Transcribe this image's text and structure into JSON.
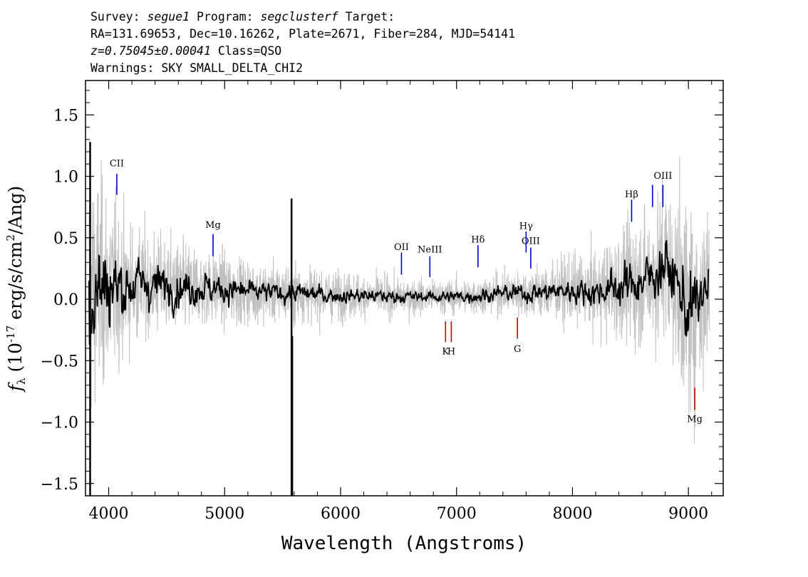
{
  "header": {
    "survey_label": "Survey: ",
    "survey": "segue1",
    "program_label": " Program: ",
    "program": "segclusterf",
    "target_label": " Target:",
    "line2": "RA=131.69653, Dec=10.16262, Plate=2671, Fiber=284, MJD=54141",
    "redshift": "z=0.75045±0.00041",
    "class_text": " Class=QSO",
    "warnings": "Warnings: SKY SMALL_DELTA_CHI2"
  },
  "chart_data": {
    "type": "line",
    "xlabel": "Wavelength (Angstroms)",
    "ylabel_main": "f",
    "ylabel_sub": "λ",
    "ylabel_rest": " (10",
    "ylabel_exp": "-17",
    "ylabel_units": " erg/s/cm",
    "ylabel_exp2": "2",
    "ylabel_end": "/Ang)",
    "xlim": [
      3800,
      9300
    ],
    "ylim": [
      -1.6,
      1.78
    ],
    "xticks": [
      4000,
      5000,
      6000,
      7000,
      8000,
      9000
    ],
    "xtick_labels": [
      "4000",
      "5000",
      "6000",
      "7000",
      "8000",
      "9000"
    ],
    "yticks": [
      -1.5,
      -1.0,
      -0.5,
      0.0,
      0.5,
      1.0,
      1.5
    ],
    "ytick_labels": [
      "−1.5",
      "−1.0",
      "−0.5",
      "0.0",
      "0.5",
      "1.0",
      "1.5"
    ],
    "grid": false,
    "series": [
      {
        "role": "error",
        "color": "#c0c0c0",
        "x": [
          3830,
          3900,
          4000,
          4100,
          4200,
          4400,
          4600,
          4800,
          5000,
          5200,
          5400,
          5600,
          5800,
          6000,
          6200,
          6400,
          6600,
          6800,
          7000,
          7200,
          7400,
          7600,
          7800,
          8000,
          8200,
          8400,
          8600,
          8800,
          9000,
          9180
        ],
        "amp": [
          0.95,
          0.85,
          0.7,
          0.55,
          0.45,
          0.38,
          0.34,
          0.3,
          0.27,
          0.24,
          0.22,
          0.22,
          0.2,
          0.18,
          0.16,
          0.15,
          0.14,
          0.13,
          0.13,
          0.14,
          0.16,
          0.19,
          0.22,
          0.26,
          0.3,
          0.42,
          0.5,
          0.6,
          0.8,
          0.7
        ]
      },
      {
        "role": "flux",
        "color": "#000000",
        "x": [
          3830,
          3900,
          4000,
          4100,
          4200,
          4400,
          4600,
          4800,
          5000,
          5200,
          5400,
          5600,
          5800,
          6000,
          6200,
          6400,
          6600,
          6800,
          7000,
          7200,
          7400,
          7600,
          7800,
          8000,
          8200,
          8400,
          8600,
          8700,
          8800,
          8900,
          9000,
          9100,
          9180
        ],
        "y": [
          0.05,
          0.1,
          0.12,
          0.1,
          0.12,
          0.12,
          0.1,
          0.1,
          0.08,
          0.06,
          0.05,
          0.05,
          0.04,
          0.03,
          0.03,
          0.02,
          0.02,
          0.02,
          0.02,
          0.03,
          0.05,
          0.05,
          0.06,
          0.07,
          0.06,
          0.1,
          0.15,
          0.2,
          0.3,
          0.12,
          -0.1,
          0.0,
          0.1
        ],
        "amp": [
          0.55,
          0.5,
          0.4,
          0.3,
          0.25,
          0.2,
          0.17,
          0.15,
          0.12,
          0.1,
          0.09,
          0.09,
          0.08,
          0.07,
          0.06,
          0.06,
          0.05,
          0.05,
          0.05,
          0.06,
          0.07,
          0.08,
          0.09,
          0.1,
          0.12,
          0.18,
          0.2,
          0.22,
          0.25,
          0.3,
          0.35,
          0.25,
          0.2
        ]
      }
    ],
    "spikes": [
      {
        "x": 3840,
        "y1": -1.6,
        "y2": 1.28,
        "color": "#000000"
      },
      {
        "x": 5577,
        "y1": -1.6,
        "y2": 0.82,
        "color": "#000000"
      },
      {
        "x": 5583,
        "y1": -1.6,
        "y2": -0.3,
        "color": "#000000"
      }
    ],
    "emission_lines": [
      {
        "label": "CII",
        "x": 4070,
        "y1": 0.85,
        "y2": 1.02,
        "label_y": 1.08
      },
      {
        "label": "Mg",
        "x": 4900,
        "y1": 0.35,
        "y2": 0.53,
        "label_y": 0.58
      },
      {
        "label": "OII",
        "x": 6525,
        "y1": 0.2,
        "y2": 0.38,
        "label_y": 0.4
      },
      {
        "label": "NeIII",
        "x": 6770,
        "y1": 0.18,
        "y2": 0.35,
        "label_y": 0.38
      },
      {
        "label": "Hδ",
        "x": 7185,
        "y1": 0.26,
        "y2": 0.44,
        "label_y": 0.46
      },
      {
        "label": "Hγ",
        "x": 7600,
        "y1": 0.38,
        "y2": 0.55,
        "label_y": 0.57
      },
      {
        "label": "OIII",
        "x": 7640,
        "y1": 0.25,
        "y2": 0.42,
        "label_y": 0.45
      },
      {
        "label": "Hβ",
        "x": 8510,
        "y1": 0.63,
        "y2": 0.81,
        "label_y": 0.83
      },
      {
        "label": "",
        "x": 8690,
        "y1": 0.75,
        "y2": 0.93,
        "label_y": 0
      },
      {
        "label": "OIII",
        "x": 8780,
        "y1": 0.75,
        "y2": 0.93,
        "label_y": 0.98
      }
    ],
    "absorption_lines": [
      {
        "label": "K",
        "x": 6905,
        "y1": -0.35,
        "y2": -0.18,
        "label_y": -0.45
      },
      {
        "label": "H",
        "x": 6955,
        "y1": -0.35,
        "y2": -0.18,
        "label_y": -0.45
      },
      {
        "label": "G",
        "x": 7525,
        "y1": -0.32,
        "y2": -0.15,
        "label_y": -0.43
      },
      {
        "label": "Mg",
        "x": 9055,
        "y1": -0.9,
        "y2": -0.72,
        "label_y": -1.0
      }
    ],
    "emission_color": "#0000cc",
    "absorption_color": "#cc0000"
  }
}
